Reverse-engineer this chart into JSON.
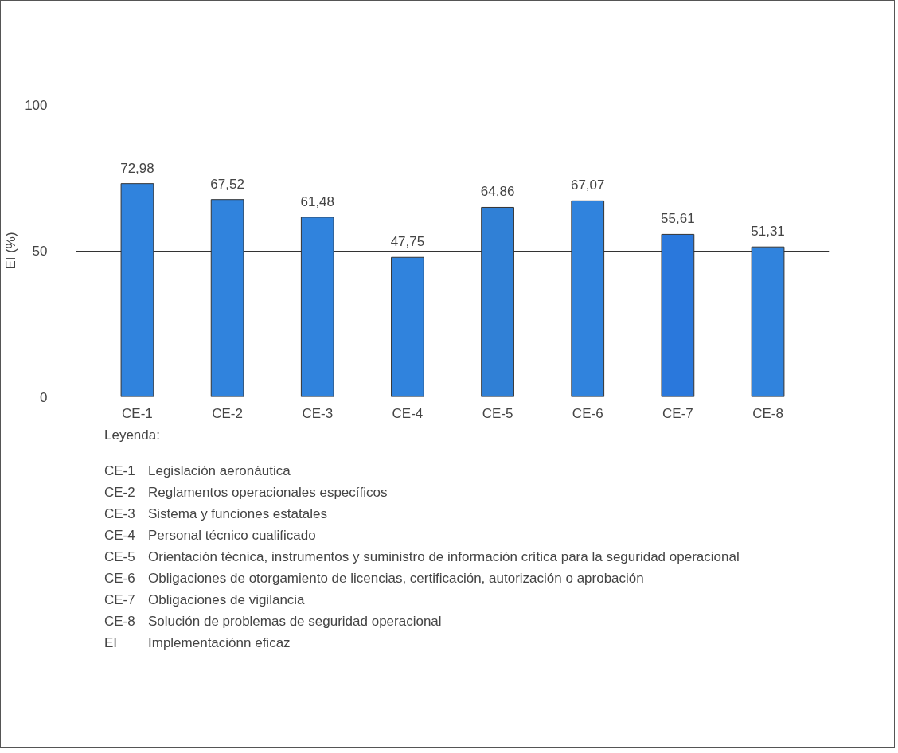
{
  "chart_data": {
    "type": "bar",
    "ylabel": "EI (%)",
    "categories": [
      "CE-1",
      "CE-2",
      "CE-3",
      "CE-4",
      "CE-5",
      "CE-6",
      "CE-7",
      "CE-8"
    ],
    "values": [
      72.98,
      67.52,
      61.48,
      47.75,
      64.86,
      67.07,
      55.61,
      51.31
    ],
    "colors": [
      "#3083dd",
      "#3083dd",
      "#3083dd",
      "#3083dd",
      "#3080d6",
      "#3083dd",
      "#2a78dc",
      "#3083dd"
    ],
    "value_labels": [
      "72,98",
      "67,52",
      "61,48",
      "47,75",
      "64,86",
      "67,07",
      "55,61",
      "51,31"
    ],
    "ylim": [
      0,
      100
    ],
    "yticks": [
      0,
      50,
      100
    ],
    "grid": "y",
    "annotations": [
      "Leyenda:",
      "CE-1\tLegislación aeronáutica",
      "CE-2\tReglamentos operacionales específicos",
      "CE-3\tSistema y funciones estatales",
      "CE-4\tPersonal técnico cualificado",
      "CE-5\tOrientación técnica, instrumentos y suministro de información crítica para la seguridad operacional",
      "CE-6\tObligaciones de otorgamiento de licencias, certificación, autorización o aprobación",
      "CE-7\tObligaciones de vigilancia",
      "CE-8\tSolución de problemas de seguridad operacional",
      "EI\tImplementaciónn eficaz"
    ]
  }
}
